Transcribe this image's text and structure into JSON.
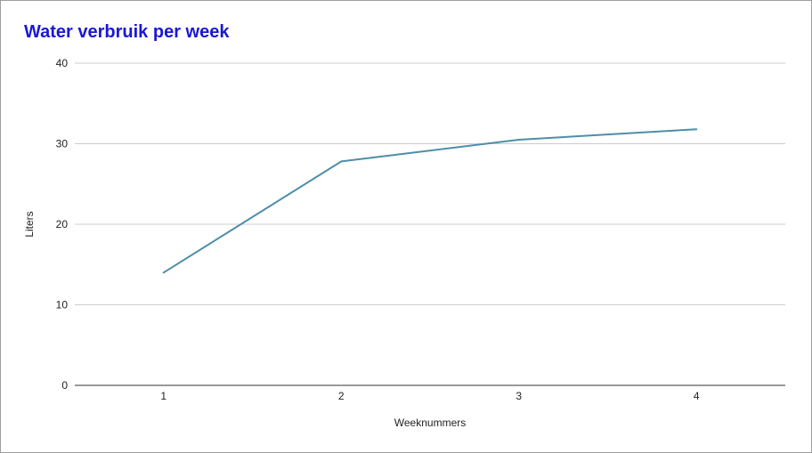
{
  "chart_data": {
    "type": "line",
    "title": "Water verbruik per week",
    "xlabel": "Weeknummers",
    "ylabel": "Liters",
    "categories": [
      "1",
      "2",
      "3",
      "4"
    ],
    "series": [
      {
        "values": [
          14,
          27.8,
          30.5,
          31.8
        ]
      }
    ],
    "ylim": [
      0,
      40
    ],
    "yticks": [
      "0",
      "10",
      "20",
      "30",
      "40"
    ],
    "grid": true,
    "legend": "none"
  },
  "colors": {
    "title": "#1a17d4",
    "series": "#4e8ea7",
    "grid": "#cccccc",
    "axis": "#333333"
  }
}
